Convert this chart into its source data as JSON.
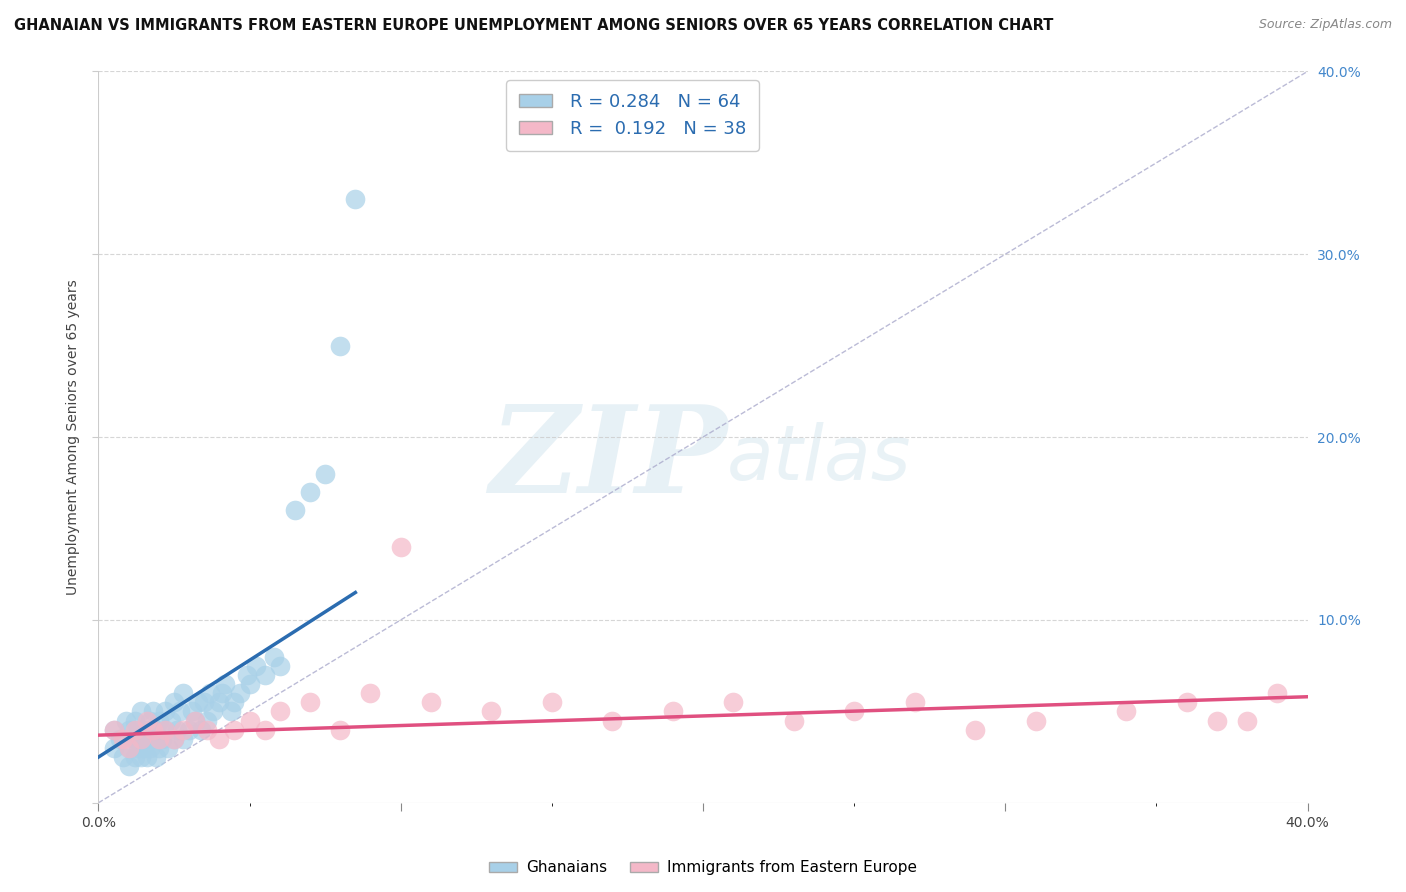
{
  "title": "GHANAIAN VS IMMIGRANTS FROM EASTERN EUROPE UNEMPLOYMENT AMONG SENIORS OVER 65 YEARS CORRELATION CHART",
  "source": "Source: ZipAtlas.com",
  "ylabel_label": "Unemployment Among Seniors over 65 years",
  "xlim": [
    0.0,
    0.4
  ],
  "ylim": [
    0.0,
    0.4
  ],
  "ghanaian_color": "#a8d0e8",
  "eastern_color": "#f4b8c8",
  "ghanaian_R": 0.284,
  "ghanaian_N": 64,
  "eastern_R": 0.192,
  "eastern_N": 38,
  "legend_label1": "Ghanaians",
  "legend_label2": "Immigrants from Eastern Europe",
  "watermark_zip": "ZIP",
  "watermark_atlas": "atlas",
  "background_color": "#ffffff",
  "grid_color": "#cccccc",
  "title_fontsize": 10.5,
  "ghanaian_line_color": "#2b6cb0",
  "eastern_line_color": "#e05080",
  "ref_line_color": "#aaaacc",
  "text_color": "#444444",
  "legend_text_color": "#2b6cb0",
  "source_color": "#888888",
  "ghanaian_x": [
    0.005,
    0.005,
    0.007,
    0.008,
    0.009,
    0.01,
    0.01,
    0.01,
    0.012,
    0.012,
    0.012,
    0.013,
    0.013,
    0.014,
    0.014,
    0.015,
    0.015,
    0.016,
    0.016,
    0.017,
    0.017,
    0.018,
    0.018,
    0.019,
    0.019,
    0.02,
    0.02,
    0.021,
    0.022,
    0.022,
    0.023,
    0.024,
    0.025,
    0.025,
    0.026,
    0.027,
    0.028,
    0.028,
    0.03,
    0.031,
    0.032,
    0.033,
    0.034,
    0.035,
    0.036,
    0.037,
    0.038,
    0.04,
    0.041,
    0.042,
    0.044,
    0.045,
    0.047,
    0.049,
    0.05,
    0.052,
    0.055,
    0.058,
    0.06,
    0.065,
    0.07,
    0.075,
    0.08,
    0.085
  ],
  "ghanaian_y": [
    0.03,
    0.04,
    0.035,
    0.025,
    0.045,
    0.02,
    0.03,
    0.04,
    0.025,
    0.035,
    0.045,
    0.03,
    0.04,
    0.025,
    0.05,
    0.03,
    0.035,
    0.025,
    0.04,
    0.03,
    0.045,
    0.035,
    0.05,
    0.025,
    0.04,
    0.03,
    0.045,
    0.035,
    0.04,
    0.05,
    0.03,
    0.045,
    0.035,
    0.055,
    0.04,
    0.05,
    0.035,
    0.06,
    0.04,
    0.05,
    0.045,
    0.055,
    0.04,
    0.055,
    0.045,
    0.06,
    0.05,
    0.055,
    0.06,
    0.065,
    0.05,
    0.055,
    0.06,
    0.07,
    0.065,
    0.075,
    0.07,
    0.08,
    0.075,
    0.16,
    0.17,
    0.18,
    0.25,
    0.33
  ],
  "eastern_x": [
    0.005,
    0.008,
    0.01,
    0.012,
    0.014,
    0.016,
    0.018,
    0.02,
    0.022,
    0.025,
    0.028,
    0.032,
    0.036,
    0.04,
    0.045,
    0.05,
    0.055,
    0.06,
    0.07,
    0.08,
    0.09,
    0.1,
    0.11,
    0.13,
    0.15,
    0.17,
    0.19,
    0.21,
    0.23,
    0.25,
    0.27,
    0.29,
    0.31,
    0.34,
    0.36,
    0.37,
    0.38,
    0.39
  ],
  "eastern_y": [
    0.04,
    0.035,
    0.03,
    0.04,
    0.035,
    0.045,
    0.04,
    0.035,
    0.04,
    0.035,
    0.04,
    0.045,
    0.04,
    0.035,
    0.04,
    0.045,
    0.04,
    0.05,
    0.055,
    0.04,
    0.06,
    0.14,
    0.055,
    0.05,
    0.055,
    0.045,
    0.05,
    0.055,
    0.045,
    0.05,
    0.055,
    0.04,
    0.045,
    0.05,
    0.055,
    0.045,
    0.045,
    0.06
  ],
  "ghanaian_trend_x": [
    0.0,
    0.085
  ],
  "ghanaian_trend_y": [
    0.025,
    0.115
  ],
  "eastern_trend_x": [
    0.0,
    0.4
  ],
  "eastern_trend_y": [
    0.037,
    0.058
  ]
}
